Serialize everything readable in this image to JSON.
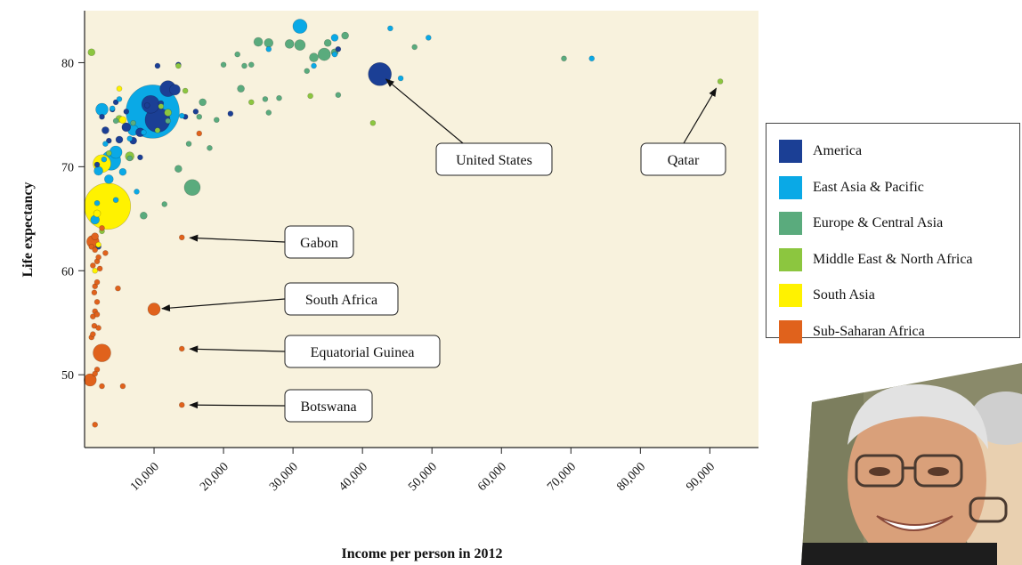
{
  "chart_data": {
    "type": "scatter",
    "title": "",
    "xlabel": "Income per person in 2012",
    "ylabel": "Life expectancy",
    "xlim": [
      0,
      97000
    ],
    "ylim": [
      43,
      85
    ],
    "x_ticks": [
      10000,
      20000,
      30000,
      40000,
      50000,
      60000,
      70000,
      80000,
      90000
    ],
    "x_tick_labels": [
      "10,000",
      "20,000",
      "30,000",
      "40,000",
      "50,000",
      "60,000",
      "70,000",
      "80,000",
      "90,000"
    ],
    "y_ticks": [
      50,
      60,
      70,
      80
    ],
    "y_tick_labels": [
      "50",
      "60",
      "70",
      "80"
    ],
    "grid": false,
    "background_color": "#f8f2dd",
    "bubble_size": "population",
    "legend_position": "right",
    "series": [
      {
        "name": "America",
        "color": "#1b3f95",
        "points": [
          [
            10500,
            74.5,
            14
          ],
          [
            9500,
            76,
            10
          ],
          [
            42500,
            78.9,
            13
          ],
          [
            12000,
            77.5,
            9
          ],
          [
            13000,
            77.4,
            6
          ],
          [
            6000,
            73.8,
            5
          ],
          [
            8000,
            73.3,
            5
          ],
          [
            7000,
            72.5,
            4
          ],
          [
            5000,
            72.6,
            4
          ],
          [
            3000,
            73.5,
            4
          ],
          [
            2500,
            74.8,
            3
          ],
          [
            4000,
            75.5,
            3
          ],
          [
            6000,
            75.3,
            3
          ],
          [
            8000,
            70.9,
            3
          ],
          [
            10500,
            79.7,
            3
          ],
          [
            13500,
            79.8,
            3
          ],
          [
            16000,
            75.3,
            3
          ],
          [
            21000,
            75.1,
            3
          ],
          [
            36500,
            81.3,
            3
          ],
          [
            14500,
            74.8,
            3
          ],
          [
            4500,
            76.2,
            3
          ],
          [
            3500,
            72.5,
            3
          ],
          [
            2000,
            62.3,
            3
          ],
          [
            1800,
            70.2,
            3
          ],
          [
            9000,
            75.9,
            3
          ],
          [
            11000,
            76.1,
            3
          ]
        ]
      },
      {
        "name": "East Asia & Pacific",
        "color": "#0aa9e6",
        "points": [
          [
            9800,
            75.3,
            30
          ],
          [
            3800,
            70.6,
            11
          ],
          [
            4500,
            71.4,
            7
          ],
          [
            2000,
            69.6,
            5
          ],
          [
            7000,
            73.5,
            6
          ],
          [
            31000,
            83.5,
            8
          ],
          [
            36000,
            82.4,
            4
          ],
          [
            44000,
            83.3,
            3
          ],
          [
            49500,
            82.4,
            3
          ],
          [
            73000,
            80.4,
            3
          ],
          [
            2500,
            75.5,
            7
          ],
          [
            1500,
            64.9,
            5
          ],
          [
            3500,
            68.8,
            5
          ],
          [
            5500,
            69.5,
            4
          ],
          [
            6500,
            72.7,
            3
          ],
          [
            1800,
            66.5,
            3
          ],
          [
            2800,
            70.7,
            3
          ],
          [
            4500,
            66.8,
            3
          ],
          [
            7500,
            67.6,
            3
          ],
          [
            4000,
            75.6,
            3
          ],
          [
            45500,
            78.5,
            3
          ],
          [
            33000,
            79.7,
            3
          ],
          [
            36000,
            80.8,
            3
          ],
          [
            14000,
            74.9,
            3
          ],
          [
            26500,
            81.3,
            3
          ],
          [
            5000,
            76.5,
            3
          ],
          [
            8500,
            73.3,
            3
          ],
          [
            3000,
            72.2,
            3
          ]
        ]
      },
      {
        "name": "Europe & Central Asia",
        "color": "#5aab7d",
        "points": [
          [
            15500,
            68,
            9
          ],
          [
            31000,
            81.7,
            6
          ],
          [
            34500,
            80.8,
            7
          ],
          [
            25000,
            82,
            5
          ],
          [
            26500,
            81.9,
            5
          ],
          [
            29500,
            81.8,
            5
          ],
          [
            33000,
            80.5,
            5
          ],
          [
            36000,
            81,
            4
          ],
          [
            37500,
            82.6,
            4
          ],
          [
            35000,
            81.9,
            4
          ],
          [
            22500,
            77.5,
            4
          ],
          [
            17000,
            76.2,
            4
          ],
          [
            19000,
            74.5,
            3
          ],
          [
            13500,
            69.8,
            4
          ],
          [
            8500,
            65.3,
            4
          ],
          [
            11500,
            66.4,
            3
          ],
          [
            20000,
            79.8,
            3
          ],
          [
            23000,
            79.7,
            3
          ],
          [
            24000,
            79.8,
            3
          ],
          [
            26000,
            76.5,
            3
          ],
          [
            26500,
            75.2,
            3
          ],
          [
            16500,
            74.8,
            3
          ],
          [
            18000,
            71.8,
            3
          ],
          [
            15000,
            72.2,
            3
          ],
          [
            12000,
            74.4,
            3
          ],
          [
            47500,
            81.5,
            3
          ],
          [
            69000,
            80.4,
            3
          ],
          [
            28000,
            76.6,
            3
          ],
          [
            32000,
            79.2,
            3
          ],
          [
            36500,
            76.9,
            3
          ],
          [
            22000,
            80.8,
            3
          ],
          [
            4500,
            74.4,
            3
          ],
          [
            6500,
            70.8,
            3
          ],
          [
            7000,
            74.2,
            3
          ]
        ]
      },
      {
        "name": "Middle East & North Africa",
        "color": "#8cc63f",
        "points": [
          [
            1000,
            81,
            4
          ],
          [
            91500,
            78.2,
            3
          ],
          [
            6500,
            71,
            5
          ],
          [
            5000,
            74.6,
            4
          ],
          [
            12000,
            75.2,
            4
          ],
          [
            13500,
            79.7,
            3
          ],
          [
            24000,
            76.2,
            3
          ],
          [
            3500,
            71.3,
            3
          ],
          [
            10500,
            73.5,
            3
          ],
          [
            11000,
            75.8,
            3
          ],
          [
            41500,
            74.2,
            3
          ],
          [
            32500,
            76.8,
            3
          ],
          [
            14500,
            77.3,
            3
          ],
          [
            2500,
            63.8,
            3
          ]
        ]
      },
      {
        "name": "South Asia",
        "color": "#fff200",
        "points": [
          [
            3300,
            66.2,
            26
          ],
          [
            2500,
            70.3,
            10
          ],
          [
            1800,
            65.5,
            4
          ],
          [
            5500,
            74.5,
            4
          ],
          [
            5000,
            77.5,
            3
          ],
          [
            1500,
            60,
            3
          ],
          [
            2000,
            62.5,
            3
          ]
        ]
      },
      {
        "name": "Sub-Saharan Africa",
        "color": "#e0621c",
        "points": [
          [
            2500,
            52.1,
            10
          ],
          [
            800,
            49.5,
            7
          ],
          [
            10000,
            56.3,
            7
          ],
          [
            1200,
            62.8,
            7
          ],
          [
            1500,
            63.3,
            4
          ],
          [
            14000,
            63.2,
            3
          ],
          [
            14000,
            52.5,
            3
          ],
          [
            14000,
            47.1,
            3
          ],
          [
            1500,
            45.2,
            3
          ],
          [
            5500,
            48.9,
            3
          ],
          [
            2500,
            48.9,
            3
          ],
          [
            1200,
            60.5,
            3
          ],
          [
            1800,
            60.9,
            3
          ],
          [
            2000,
            61.3,
            3
          ],
          [
            3000,
            61.7,
            3
          ],
          [
            1500,
            58.5,
            3
          ],
          [
            1800,
            58.9,
            3
          ],
          [
            1400,
            57.9,
            3
          ],
          [
            1800,
            57,
            3
          ],
          [
            1500,
            56.1,
            3
          ],
          [
            1200,
            55.6,
            3
          ],
          [
            1800,
            55.8,
            3
          ],
          [
            1400,
            54.7,
            3
          ],
          [
            2000,
            54.5,
            3
          ],
          [
            1000,
            53.6,
            3
          ],
          [
            1200,
            53.9,
            3
          ],
          [
            1800,
            50.5,
            3
          ],
          [
            1500,
            50.1,
            3
          ],
          [
            4800,
            58.3,
            3
          ],
          [
            16500,
            73.2,
            3
          ],
          [
            2500,
            64.1,
            3
          ],
          [
            1000,
            62.3,
            3
          ],
          [
            1500,
            62,
            3
          ],
          [
            2200,
            60.2,
            3
          ]
        ]
      }
    ],
    "annotations": [
      {
        "text": "United States",
        "point": [
          42500,
          78.9
        ]
      },
      {
        "text": "Qatar",
        "point": [
          91500,
          78.2
        ]
      },
      {
        "text": "Gabon",
        "point": [
          14000,
          63.2
        ]
      },
      {
        "text": "South Africa",
        "point": [
          10000,
          56.3
        ]
      },
      {
        "text": "Equatorial Guinea",
        "point": [
          14000,
          52.5
        ]
      },
      {
        "text": "Botswana",
        "point": [
          14000,
          47.1
        ]
      }
    ]
  }
}
